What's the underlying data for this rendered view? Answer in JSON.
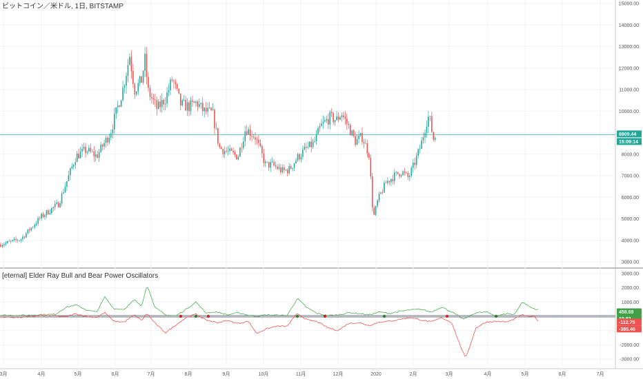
{
  "chart_data": [
    {
      "type": "candlestick",
      "title": "ビットコイン／米ドル, 1日, BITSTAMP",
      "ylim": [
        3000,
        15000
      ],
      "y_ticks": [
        "15000.00",
        "14000.00",
        "13000.00",
        "12000.00",
        "11000.00",
        "10000.00",
        "9000.00",
        "8000.00",
        "7000.00",
        "6000.00",
        "5000.00",
        "4000.00",
        "3000.00"
      ],
      "x_ticks": [
        "3月",
        "4月",
        "5月",
        "6月",
        "7月",
        "8月",
        "9月",
        "10月",
        "11月",
        "12月",
        "2020",
        "2月",
        "3月",
        "4月",
        "5月",
        "6月",
        "7月"
      ],
      "price_line": 8909.44,
      "price_label": "8909.44",
      "countdown_label": "15:09:14",
      "colors": {
        "up": "#26a69a",
        "down": "#ef5350",
        "price_line": "#26a69a"
      },
      "anchors": [
        [
          0,
          3800
        ],
        [
          30,
          4050
        ],
        [
          60,
          5100
        ],
        [
          85,
          5700
        ],
        [
          110,
          7900
        ],
        [
          125,
          8200
        ],
        [
          140,
          7900
        ],
        [
          160,
          9000
        ],
        [
          178,
          11000
        ],
        [
          188,
          12600
        ],
        [
          195,
          11000
        ],
        [
          205,
          11400
        ],
        [
          210,
          12400
        ],
        [
          215,
          10900
        ],
        [
          228,
          10100
        ],
        [
          240,
          10600
        ],
        [
          250,
          11500
        ],
        [
          262,
          10300
        ],
        [
          275,
          10200
        ],
        [
          285,
          10400
        ],
        [
          295,
          10000
        ],
        [
          308,
          9900
        ],
        [
          318,
          8300
        ],
        [
          330,
          8100
        ],
        [
          345,
          7900
        ],
        [
          356,
          9200
        ],
        [
          370,
          8800
        ],
        [
          385,
          7500
        ],
        [
          395,
          7500
        ],
        [
          410,
          7200
        ],
        [
          420,
          7300
        ],
        [
          430,
          7800
        ],
        [
          442,
          8200
        ],
        [
          455,
          8500
        ],
        [
          465,
          9300
        ],
        [
          478,
          9700
        ],
        [
          488,
          9600
        ],
        [
          495,
          9900
        ],
        [
          505,
          9300
        ],
        [
          515,
          8600
        ],
        [
          525,
          8800
        ],
        [
          535,
          8000
        ],
        [
          541,
          5000
        ],
        [
          548,
          5900
        ],
        [
          560,
          6700
        ],
        [
          572,
          7000
        ],
        [
          582,
          7200
        ],
        [
          592,
          6900
        ],
        [
          600,
          7500
        ],
        [
          610,
          8400
        ],
        [
          618,
          9500
        ],
        [
          622,
          9800
        ],
        [
          628,
          8700
        ],
        [
          633,
          8900
        ]
      ]
    },
    {
      "type": "line",
      "title": "[eternal] Elder Ray Bull and Bear Power Oscillators",
      "ylim": [
        -3200,
        3200
      ],
      "y_ticks": [
        "3000.00",
        "2000.00",
        "1000.00",
        "0.00",
        "-1000.00",
        "-2000.00",
        "-3000.00"
      ],
      "series": [
        {
          "color": "#4caf50",
          "last_label": "458.69",
          "anchors": [
            [
              0,
              80
            ],
            [
              30,
              60
            ],
            [
              60,
              120
            ],
            [
              80,
              130
            ],
            [
              95,
              620
            ],
            [
              110,
              800
            ],
            [
              125,
              450
            ],
            [
              140,
              300
            ],
            [
              152,
              1350
            ],
            [
              165,
              530
            ],
            [
              180,
              500
            ],
            [
              195,
              1150
            ],
            [
              205,
              700
            ],
            [
              213,
              2200
            ],
            [
              225,
              600
            ],
            [
              240,
              100
            ],
            [
              255,
              30
            ],
            [
              270,
              500
            ],
            [
              284,
              1000
            ],
            [
              298,
              250
            ],
            [
              315,
              300
            ],
            [
              330,
              100
            ],
            [
              345,
              250
            ],
            [
              360,
              80
            ],
            [
              372,
              0
            ],
            [
              385,
              100
            ],
            [
              400,
              80
            ],
            [
              416,
              50
            ],
            [
              431,
              1250
            ],
            [
              445,
              600
            ],
            [
              460,
              200
            ],
            [
              475,
              50
            ],
            [
              490,
              100
            ],
            [
              505,
              250
            ],
            [
              520,
              200
            ],
            [
              535,
              100
            ],
            [
              550,
              300
            ],
            [
              565,
              200
            ],
            [
              580,
              350
            ],
            [
              595,
              450
            ],
            [
              610,
              500
            ],
            [
              625,
              300
            ],
            [
              640,
              650
            ],
            [
              655,
              300
            ],
            [
              672,
              -200
            ],
            [
              690,
              250
            ],
            [
              705,
              300
            ],
            [
              720,
              0
            ],
            [
              735,
              200
            ],
            [
              745,
              100
            ],
            [
              757,
              1000
            ],
            [
              770,
              600
            ],
            [
              780,
              459
            ]
          ]
        },
        {
          "color": "#ef5350",
          "last_label": "-385.46",
          "anchors": [
            [
              0,
              -50
            ],
            [
              30,
              -80
            ],
            [
              60,
              50
            ],
            [
              80,
              30
            ],
            [
              95,
              -30
            ],
            [
              110,
              180
            ],
            [
              125,
              -20
            ],
            [
              140,
              -60
            ],
            [
              152,
              250
            ],
            [
              165,
              -350
            ],
            [
              180,
              -400
            ],
            [
              195,
              100
            ],
            [
              205,
              -300
            ],
            [
              213,
              200
            ],
            [
              225,
              -500
            ],
            [
              240,
              -1150
            ],
            [
              255,
              -600
            ],
            [
              270,
              -80
            ],
            [
              284,
              150
            ],
            [
              298,
              -250
            ],
            [
              315,
              -450
            ],
            [
              330,
              -300
            ],
            [
              345,
              -500
            ],
            [
              360,
              -350
            ],
            [
              372,
              -1200
            ],
            [
              385,
              -900
            ],
            [
              400,
              -700
            ],
            [
              416,
              -700
            ],
            [
              431,
              200
            ],
            [
              445,
              -250
            ],
            [
              460,
              -380
            ],
            [
              475,
              -800
            ],
            [
              490,
              -1000
            ],
            [
              505,
              -500
            ],
            [
              520,
              -450
            ],
            [
              535,
              -650
            ],
            [
              550,
              -400
            ],
            [
              565,
              -350
            ],
            [
              580,
              -200
            ],
            [
              595,
              -100
            ],
            [
              610,
              -250
            ],
            [
              625,
              -400
            ],
            [
              640,
              -100
            ],
            [
              655,
              -450
            ],
            [
              665,
              -1800
            ],
            [
              675,
              -2950
            ],
            [
              690,
              -800
            ],
            [
              705,
              -400
            ],
            [
              720,
              -350
            ],
            [
              735,
              -400
            ],
            [
              745,
              -200
            ],
            [
              757,
              100
            ],
            [
              770,
              -50
            ],
            [
              775,
              50
            ],
            [
              780,
              -385
            ]
          ]
        }
      ],
      "badges": {
        "green_top": "458.69",
        "green_bottom": "19.82",
        "red_top": "-112.75",
        "red_bottom": "-385.46"
      },
      "dots": [
        {
          "x": 262,
          "color": "#c62828"
        },
        {
          "x": 284,
          "color": "#2e7d32"
        },
        {
          "x": 302,
          "color": "#c62828"
        },
        {
          "x": 431,
          "color": "#2e7d32"
        },
        {
          "x": 471,
          "color": "#c62828"
        },
        {
          "x": 557,
          "color": "#2e7d32"
        },
        {
          "x": 648,
          "color": "#c62828"
        },
        {
          "x": 719,
          "color": "#2e7d32"
        }
      ]
    }
  ]
}
